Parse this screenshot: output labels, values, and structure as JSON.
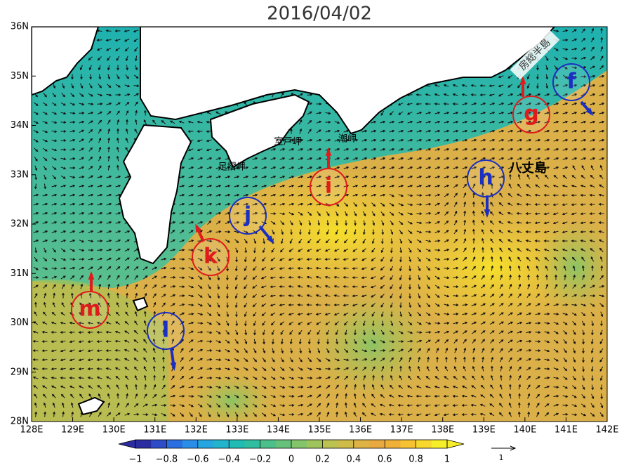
{
  "title": "2016/04/02",
  "lat_ticks": [
    {
      "value": 36,
      "label": "36N"
    },
    {
      "value": 35,
      "label": "35N"
    },
    {
      "value": 34,
      "label": "34N"
    },
    {
      "value": 33,
      "label": "33N"
    },
    {
      "value": 32,
      "label": "32N"
    },
    {
      "value": 31,
      "label": "31N"
    },
    {
      "value": 30,
      "label": "30N"
    },
    {
      "value": 29,
      "label": "29N"
    },
    {
      "value": 28,
      "label": "28N"
    }
  ],
  "lon_ticks": [
    {
      "value": 128,
      "label": "128E"
    },
    {
      "value": 129,
      "label": "129E"
    },
    {
      "value": 130,
      "label": "130E"
    },
    {
      "value": 131,
      "label": "131E"
    },
    {
      "value": 132,
      "label": "132E"
    },
    {
      "value": 133,
      "label": "133E"
    },
    {
      "value": 134,
      "label": "134E"
    },
    {
      "value": 135,
      "label": "135E"
    },
    {
      "value": 136,
      "label": "136E"
    },
    {
      "value": 137,
      "label": "137E"
    },
    {
      "value": 138,
      "label": "138E"
    },
    {
      "value": 139,
      "label": "139E"
    },
    {
      "value": 140,
      "label": "140E"
    },
    {
      "value": 141,
      "label": "141E"
    },
    {
      "value": 142,
      "label": "142E"
    }
  ],
  "colorbar": {
    "range": [
      -1,
      1
    ],
    "ticks": [
      {
        "value": -1,
        "label": "−1"
      },
      {
        "value": -0.8,
        "label": "−0.8"
      },
      {
        "value": -0.6,
        "label": "−0.6"
      },
      {
        "value": -0.4,
        "label": "−0.4"
      },
      {
        "value": -0.2,
        "label": "−0.2"
      },
      0,
      0.2,
      0.4,
      0.6,
      0.8,
      1
    ],
    "colors": [
      "#2b2ca0",
      "#2f4cc8",
      "#2a6ee0",
      "#2a8ee8",
      "#26a6e0",
      "#22b4cc",
      "#20bcb4",
      "#30bea0",
      "#4cc08a",
      "#66c27a",
      "#84c46a",
      "#a0c45c",
      "#bcc250",
      "#cfbb48",
      "#deb244",
      "#e8aa40",
      "#f0b038",
      "#f6c232",
      "#f8d82c",
      "#f6ee28"
    ]
  },
  "reference_vector_label": "1",
  "stations": [
    {
      "label": "f"
    },
    {
      "label": "g"
    },
    {
      "label": "h"
    },
    {
      "label": "i"
    },
    {
      "label": "j"
    },
    {
      "label": "k"
    },
    {
      "label": "l"
    },
    {
      "label": "m"
    }
  ],
  "places": [
    {
      "label": "房総半島"
    },
    {
      "label": "八丈島"
    },
    {
      "label": "潮岬"
    },
    {
      "label": "室戸岬"
    },
    {
      "label": "足摺岬"
    }
  ]
}
